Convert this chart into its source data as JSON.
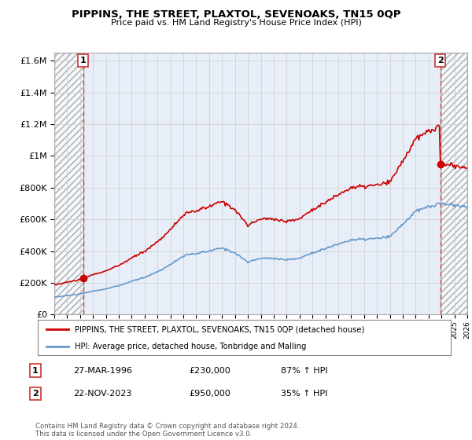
{
  "title": "PIPPINS, THE STREET, PLAXTOL, SEVENOAKS, TN15 0QP",
  "subtitle": "Price paid vs. HM Land Registry's House Price Index (HPI)",
  "legend_line1": "PIPPINS, THE STREET, PLAXTOL, SEVENOAKS, TN15 0QP (detached house)",
  "legend_line2": "HPI: Average price, detached house, Tonbridge and Malling",
  "transaction1_label": "1",
  "transaction1_date": "27-MAR-1996",
  "transaction1_price": "£230,000",
  "transaction1_hpi": "87% ↑ HPI",
  "transaction2_label": "2",
  "transaction2_date": "22-NOV-2023",
  "transaction2_price": "£950,000",
  "transaction2_hpi": "35% ↑ HPI",
  "footer": "Contains HM Land Registry data © Crown copyright and database right 2024.\nThis data is licensed under the Open Government Licence v3.0.",
  "ylim": [
    0,
    1650000
  ],
  "xlim_start": 1994.0,
  "xlim_end": 2026.0,
  "transaction1_x": 1996.23,
  "transaction1_y": 230000,
  "transaction2_x": 2023.9,
  "transaction2_y": 950000,
  "red_color": "#cc0000",
  "blue_color": "#6699cc",
  "grid_color": "#cccccc",
  "bg_color": "#e8eef8",
  "plot_bg": "#ffffff",
  "dashed_line_color": "#dd4444"
}
